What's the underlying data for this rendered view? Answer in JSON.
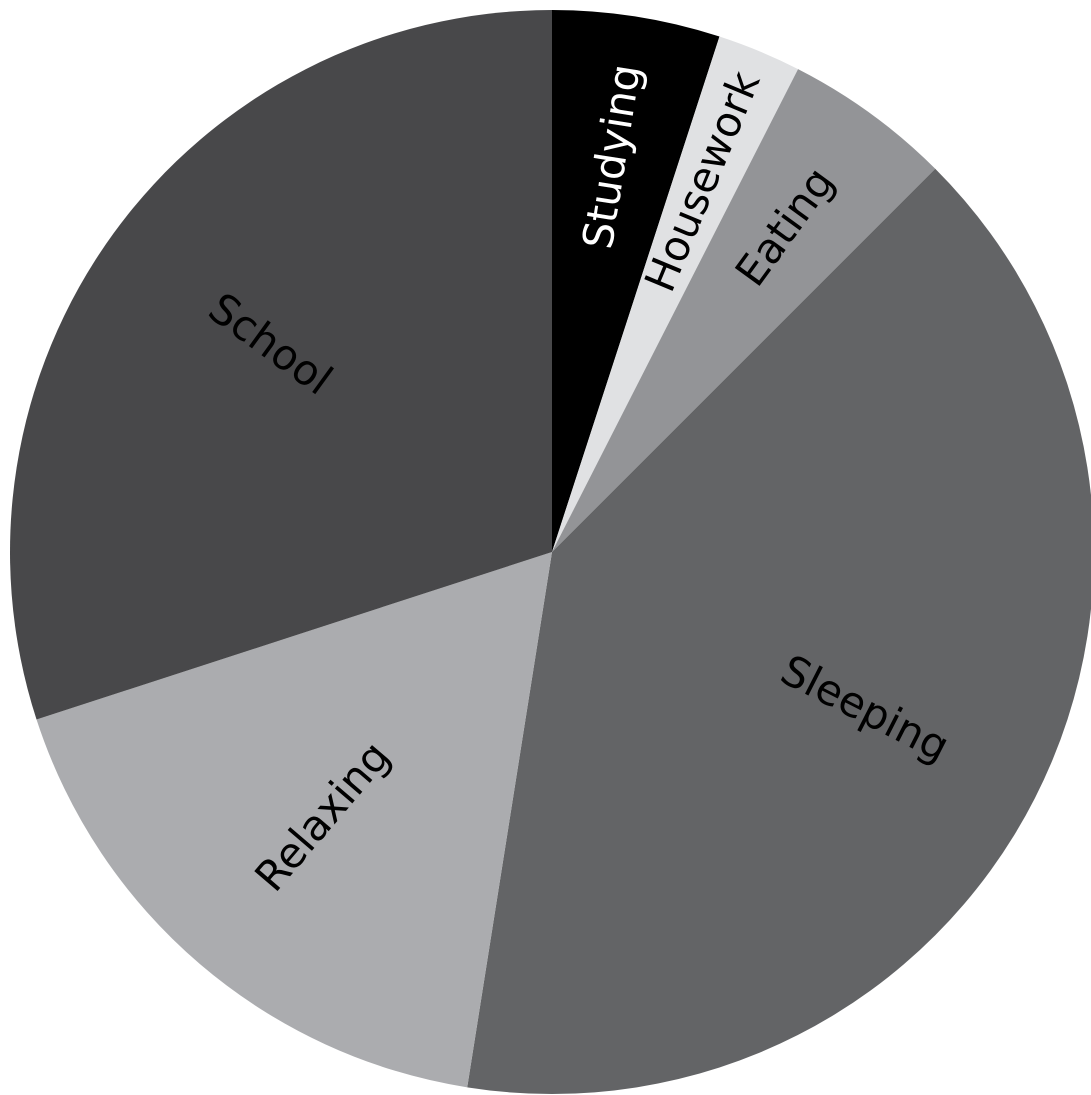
{
  "chart_data": {
    "type": "pie",
    "start_angle_deg": 0,
    "direction": "clockwise",
    "slices": [
      {
        "label": "Studying",
        "value": 1,
        "color": "#000000",
        "text_color": "#ffffff"
      },
      {
        "label": "Housework",
        "value": 0.5,
        "color": "#e0e1e3",
        "text_color": "#000000"
      },
      {
        "label": "Eating",
        "value": 1,
        "color": "#939497",
        "text_color": "#000000"
      },
      {
        "label": "Sleeping",
        "value": 8,
        "color": "#636466",
        "text_color": "#000000"
      },
      {
        "label": "Relaxing",
        "value": 3.5,
        "color": "#abacaf",
        "text_color": "#000000"
      },
      {
        "label": "School",
        "value": 6,
        "color": "#48484a",
        "text_color": "#000000"
      }
    ]
  }
}
